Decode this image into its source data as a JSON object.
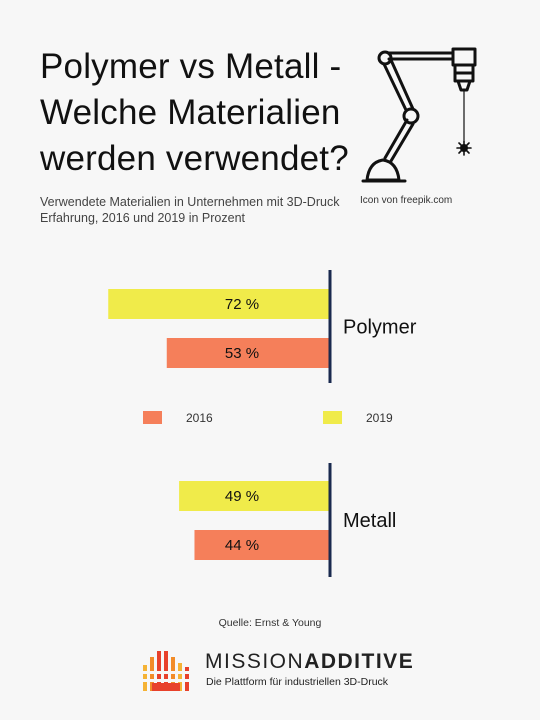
{
  "title": "Polymer vs Metall - Welche Materialien werden verwendet?",
  "subtitle": "Verwendete Materialien in Unternehmen mit 3D-Druck Erfahrung, 2016 und 2019 in Prozent",
  "icon": {
    "name": "robot-arm-laser-icon",
    "credit": "Icon von  freepik.com"
  },
  "chart_data": {
    "type": "bar",
    "orientation": "horizontal",
    "categories": [
      "Polymer",
      "Metall"
    ],
    "series": [
      {
        "name": "2019",
        "color": "#f0eb4a",
        "values": [
          72,
          49
        ],
        "labels": [
          "72 %",
          "49 %"
        ]
      },
      {
        "name": "2016",
        "color": "#f57f5a",
        "values": [
          53,
          44
        ],
        "labels": [
          "53 %",
          "44 %"
        ]
      }
    ],
    "legend": {
      "placement": "middle",
      "items": [
        "2016",
        "2019"
      ]
    },
    "axis_color": "#1a2a4f"
  },
  "source": "Quelle: Ernst & Young",
  "brand": {
    "name_part1": "MISSION",
    "name_part2": "ADDITIVE",
    "tagline": "Die Plattform für industriellen 3D-Druck",
    "colors": [
      "#e8412b",
      "#f28c28",
      "#f5b335"
    ]
  }
}
